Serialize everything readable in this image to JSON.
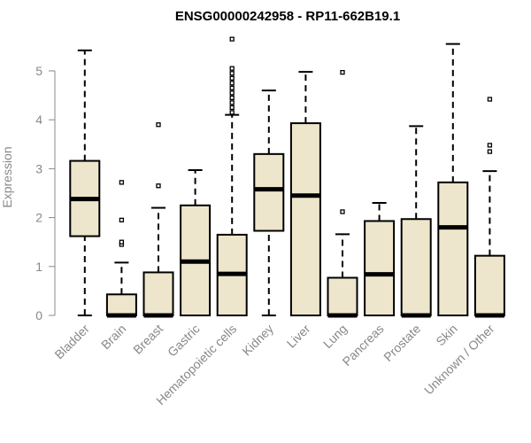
{
  "chart_data": {
    "type": "boxplot",
    "title": "ENSG00000242958 - RP11-662B19.1",
    "ylabel": "Expression",
    "xlabel": "",
    "ylim": [
      0,
      5.5
    ],
    "yticks": [
      0,
      1,
      2,
      3,
      4,
      5
    ],
    "colors": {
      "box_fill": "#ede6cc",
      "stroke": "#000000",
      "axis": "#888888"
    },
    "categories": [
      "Bladder",
      "Brain",
      "Breast",
      "Gastric",
      "Hematopoietic cells",
      "Kidney",
      "Liver",
      "Lung",
      "Pancreas",
      "Prostate",
      "Skin",
      "Unknown / Other"
    ],
    "boxes": [
      {
        "min": 0,
        "q1": 1.62,
        "median": 2.38,
        "q3": 3.16,
        "max": 5.42,
        "outliers": []
      },
      {
        "min": 0,
        "q1": 0,
        "median": 0,
        "q3": 0.43,
        "max": 1.08,
        "outliers": [
          1.45,
          1.5,
          1.95,
          2.72
        ]
      },
      {
        "min": 0,
        "q1": 0,
        "median": 0,
        "q3": 0.88,
        "max": 2.2,
        "outliers": [
          2.65,
          3.9
        ]
      },
      {
        "min": 0,
        "q1": 0,
        "median": 1.1,
        "q3": 2.25,
        "max": 2.97,
        "outliers": []
      },
      {
        "min": 0,
        "q1": 0,
        "median": 0.85,
        "q3": 1.65,
        "max": 4.1,
        "outliers": [
          4.15,
          4.25,
          4.35,
          4.45,
          4.55,
          4.65,
          4.75,
          4.85,
          4.95,
          5.05,
          5.65
        ]
      },
      {
        "min": 0,
        "q1": 1.73,
        "median": 2.58,
        "q3": 3.3,
        "max": 4.6,
        "outliers": []
      },
      {
        "min": 0,
        "q1": 0,
        "median": 2.45,
        "q3": 3.93,
        "max": 4.98,
        "outliers": []
      },
      {
        "min": 0,
        "q1": 0,
        "median": 0,
        "q3": 0.77,
        "max": 1.66,
        "outliers": [
          2.12,
          4.97
        ]
      },
      {
        "min": 0,
        "q1": 0,
        "median": 0.84,
        "q3": 1.93,
        "max": 2.3,
        "outliers": []
      },
      {
        "min": 0,
        "q1": 0,
        "median": 0,
        "q3": 1.97,
        "max": 3.87,
        "outliers": []
      },
      {
        "min": 0,
        "q1": 0,
        "median": 1.8,
        "q3": 2.72,
        "max": 5.55,
        "outliers": []
      },
      {
        "min": 0,
        "q1": 0,
        "median": 0,
        "q3": 1.22,
        "max": 2.95,
        "outliers": [
          3.35,
          3.48,
          4.42
        ]
      }
    ]
  }
}
